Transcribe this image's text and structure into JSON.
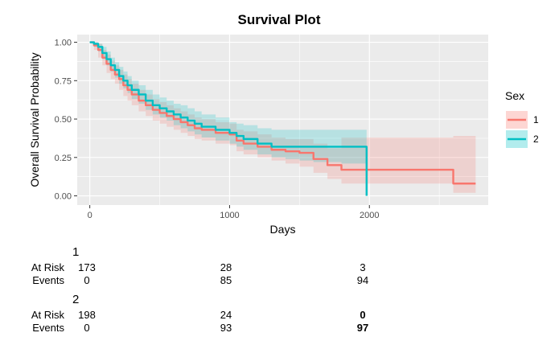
{
  "chart_data": {
    "type": "line",
    "title": "Survival Plot",
    "xlabel": "Days",
    "ylabel": "Overall Survival Probability",
    "xlim": [
      -90,
      2850
    ],
    "ylim": [
      -0.06,
      1.05
    ],
    "x_ticks": [
      0,
      1000,
      2000
    ],
    "y_ticks": [
      0.0,
      0.25,
      0.5,
      0.75,
      1.0
    ],
    "x_tick_labels": [
      "0",
      "1000",
      "2000"
    ],
    "y_tick_labels": [
      "0.00",
      "0.25",
      "0.50",
      "0.75",
      "1.00"
    ],
    "grid": true,
    "legend": {
      "title": "Sex",
      "position": "right"
    },
    "series": [
      {
        "name": "1",
        "color": "#F8766D",
        "x": [
          0,
          30,
          60,
          90,
          120,
          150,
          180,
          210,
          240,
          270,
          300,
          350,
          400,
          450,
          500,
          550,
          600,
          650,
          700,
          750,
          800,
          900,
          1000,
          1050,
          1100,
          1200,
          1300,
          1400,
          1500,
          1600,
          1700,
          1800,
          2000,
          2600,
          2760
        ],
        "y": [
          1.0,
          0.98,
          0.95,
          0.9,
          0.86,
          0.82,
          0.79,
          0.76,
          0.72,
          0.69,
          0.66,
          0.62,
          0.59,
          0.56,
          0.54,
          0.52,
          0.5,
          0.48,
          0.46,
          0.44,
          0.43,
          0.41,
          0.4,
          0.36,
          0.34,
          0.32,
          0.3,
          0.29,
          0.28,
          0.24,
          0.2,
          0.17,
          0.17,
          0.08,
          0.08
        ],
        "lower": [
          1.0,
          0.95,
          0.9,
          0.85,
          0.8,
          0.76,
          0.73,
          0.69,
          0.65,
          0.62,
          0.59,
          0.55,
          0.52,
          0.49,
          0.47,
          0.45,
          0.43,
          0.41,
          0.39,
          0.37,
          0.36,
          0.34,
          0.33,
          0.29,
          0.27,
          0.25,
          0.23,
          0.21,
          0.19,
          0.15,
          0.11,
          0.08,
          0.08,
          0.02,
          0.02
        ],
        "upper": [
          1.0,
          1.0,
          0.99,
          0.95,
          0.92,
          0.88,
          0.85,
          0.82,
          0.79,
          0.76,
          0.73,
          0.69,
          0.66,
          0.63,
          0.61,
          0.59,
          0.57,
          0.55,
          0.53,
          0.51,
          0.5,
          0.48,
          0.47,
          0.43,
          0.42,
          0.4,
          0.38,
          0.37,
          0.37,
          0.34,
          0.31,
          0.38,
          0.38,
          0.39,
          0.39
        ]
      },
      {
        "name": "2",
        "color": "#00BFC4",
        "x": [
          0,
          30,
          60,
          90,
          120,
          150,
          180,
          210,
          240,
          270,
          300,
          350,
          400,
          450,
          500,
          550,
          600,
          650,
          700,
          750,
          800,
          900,
          1000,
          1050,
          1100,
          1200,
          1300,
          1400,
          1500,
          1600,
          1700,
          1800,
          1980
        ],
        "y": [
          1.0,
          0.99,
          0.97,
          0.93,
          0.89,
          0.85,
          0.82,
          0.78,
          0.75,
          0.72,
          0.69,
          0.66,
          0.62,
          0.59,
          0.57,
          0.55,
          0.53,
          0.51,
          0.49,
          0.47,
          0.45,
          0.43,
          0.41,
          0.39,
          0.37,
          0.34,
          0.32,
          0.32,
          0.32,
          0.32,
          0.32,
          0.32,
          0.32
        ],
        "lower": [
          1.0,
          0.97,
          0.94,
          0.89,
          0.85,
          0.81,
          0.77,
          0.73,
          0.7,
          0.67,
          0.63,
          0.6,
          0.56,
          0.53,
          0.51,
          0.49,
          0.46,
          0.44,
          0.42,
          0.4,
          0.38,
          0.36,
          0.34,
          0.32,
          0.3,
          0.27,
          0.25,
          0.24,
          0.23,
          0.22,
          0.22,
          0.21,
          0.21
        ],
        "upper": [
          1.0,
          1.0,
          0.99,
          0.97,
          0.94,
          0.9,
          0.87,
          0.84,
          0.81,
          0.78,
          0.75,
          0.72,
          0.69,
          0.66,
          0.64,
          0.62,
          0.6,
          0.59,
          0.57,
          0.55,
          0.53,
          0.51,
          0.48,
          0.47,
          0.46,
          0.44,
          0.43,
          0.43,
          0.43,
          0.43,
          0.43,
          0.43,
          0.43
        ],
        "final_drop": 0.0
      }
    ]
  },
  "risk_table": {
    "groups": [
      {
        "title": "1",
        "rows": [
          {
            "label": "At Risk",
            "values": [
              "173",
              "28",
              "3"
            ]
          },
          {
            "label": "Events",
            "values": [
              "0",
              "85",
              "94"
            ]
          }
        ]
      },
      {
        "title": "2",
        "rows": [
          {
            "label": "At Risk",
            "values": [
              "198",
              "24",
              "0"
            ]
          },
          {
            "label": "Events",
            "values": [
              "0",
              "93",
              "97"
            ]
          }
        ]
      }
    ]
  }
}
